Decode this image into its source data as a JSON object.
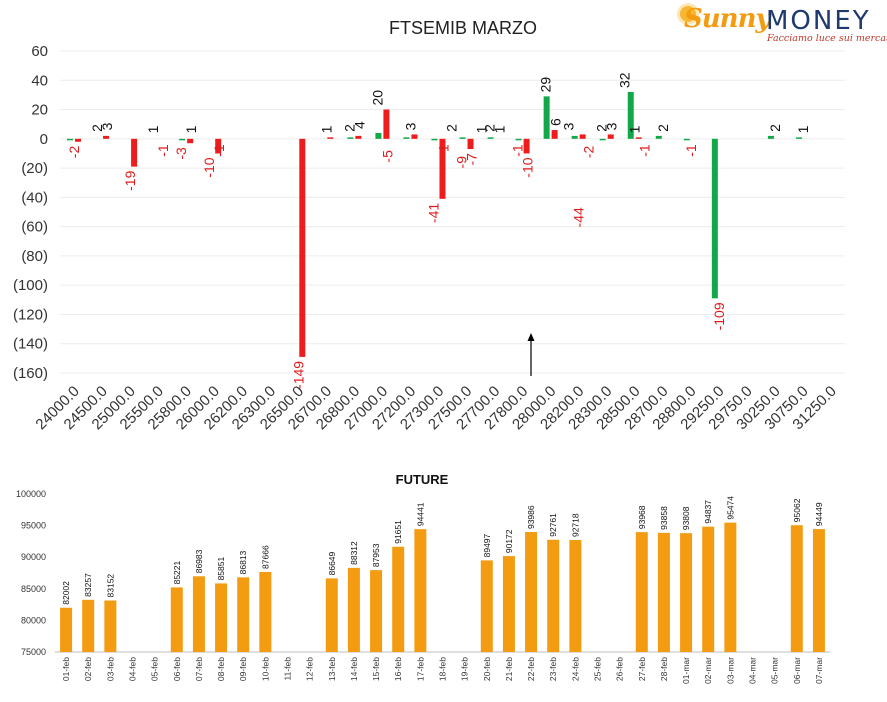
{
  "brand": {
    "name_part1": "Sunny",
    "name_part2": "MONEY",
    "tagline": "Facciamo luce sui mercati"
  },
  "colors": {
    "red": "#ee1c1c",
    "green": "#12a84a",
    "orange": "#f39c12",
    "axis_text": "#333333",
    "red_label": "#e11b1b"
  },
  "chart_data": [
    {
      "type": "bar",
      "title": "FTSEMIB MARZO",
      "ylim": [
        -160,
        60
      ],
      "yticks": [
        "60",
        "40",
        "20",
        "0",
        "(20)",
        "(40)",
        "(60)",
        "(80)",
        "(100)",
        "(120)",
        "(140)",
        "(160)"
      ],
      "ytick_values": [
        60,
        40,
        20,
        0,
        -20,
        -40,
        -60,
        -80,
        -100,
        -120,
        -140,
        -160
      ],
      "categories": [
        "24000.0",
        "24500.0",
        "25000.0",
        "25500.0",
        "25800.0",
        "26000.0",
        "26200.0",
        "26300.0",
        "26500.0",
        "26700.0",
        "26800.0",
        "27000.0",
        "27200.0",
        "27300.0",
        "27500.0",
        "27700.0",
        "27800.0",
        "28000.0",
        "28200.0",
        "28300.0",
        "28500.0",
        "28700.0",
        "28800.0",
        "29250.0",
        "29750.0",
        "30250.0",
        "30750.0",
        "31250.0"
      ],
      "series": [
        {
          "values": [
            -1,
            null,
            null,
            null,
            -1,
            null,
            null,
            null,
            null,
            null,
            1,
            4,
            1,
            -1,
            1,
            1,
            -1,
            29,
            2,
            -1,
            32,
            2,
            -1,
            -109,
            null,
            2,
            1,
            null
          ]
        },
        {
          "values": [
            -2,
            2,
            -19,
            null,
            -3,
            -10,
            null,
            null,
            -149,
            1,
            2,
            20,
            3,
            -41,
            -7,
            null,
            -10,
            6,
            3,
            3,
            1,
            null,
            null,
            null,
            null,
            null,
            null,
            null
          ]
        }
      ],
      "labels": [
        [
          "-2"
        ],
        [
          "2",
          "3"
        ],
        [
          "-19"
        ],
        [
          "1",
          "-1"
        ],
        [
          "-3",
          "1"
        ],
        [
          "-10",
          "-1"
        ],
        [],
        [],
        [
          "-149"
        ],
        [
          "1"
        ],
        [
          "2",
          "4"
        ],
        [
          "20",
          "-5"
        ],
        [
          "3"
        ],
        [
          "-41",
          "-1"
        ],
        [
          "2",
          "-9",
          "-7",
          "1"
        ],
        [
          "2",
          "1"
        ],
        [
          "-1",
          "-10"
        ],
        [
          "29",
          "6"
        ],
        [
          "3",
          "-44",
          "-2"
        ],
        [
          "2",
          "3"
        ],
        [
          "32",
          "1",
          "-1"
        ],
        [
          "2"
        ],
        [
          "-1"
        ],
        [
          "-109"
        ],
        [],
        [
          "2"
        ],
        [
          "1"
        ],
        []
      ],
      "annotation": "arrow-up"
    },
    {
      "type": "bar",
      "title": "FUTURE",
      "ylim": [
        75000,
        100000
      ],
      "yticks": [
        "100000",
        "95000",
        "90000",
        "85000",
        "80000",
        "75000"
      ],
      "ytick_values": [
        100000,
        95000,
        90000,
        85000,
        80000,
        75000
      ],
      "categories": [
        "01-feb",
        "02-feb",
        "03-feb",
        "04-feb",
        "05-feb",
        "06-feb",
        "07-feb",
        "08-feb",
        "09-feb",
        "10-feb",
        "11-feb",
        "12-feb",
        "13-feb",
        "14-feb",
        "15-feb",
        "16-feb",
        "17-feb",
        "18-feb",
        "19-feb",
        "20-feb",
        "21-feb",
        "22-feb",
        "23-feb",
        "24-feb",
        "25-feb",
        "26-feb",
        "27-feb",
        "28-feb",
        "01-mar",
        "02-mar",
        "03-mar",
        "04-mar",
        "05-mar",
        "06-mar",
        "07-mar"
      ],
      "values": [
        82002,
        83257,
        83152,
        null,
        null,
        85221,
        86983,
        85851,
        86813,
        87666,
        null,
        null,
        86649,
        88312,
        87953,
        91651,
        94441,
        null,
        null,
        89497,
        90172,
        93986,
        92761,
        92718,
        null,
        null,
        93968,
        93858,
        93808,
        94837,
        95474,
        null,
        null,
        95062,
        94449
      ]
    }
  ]
}
